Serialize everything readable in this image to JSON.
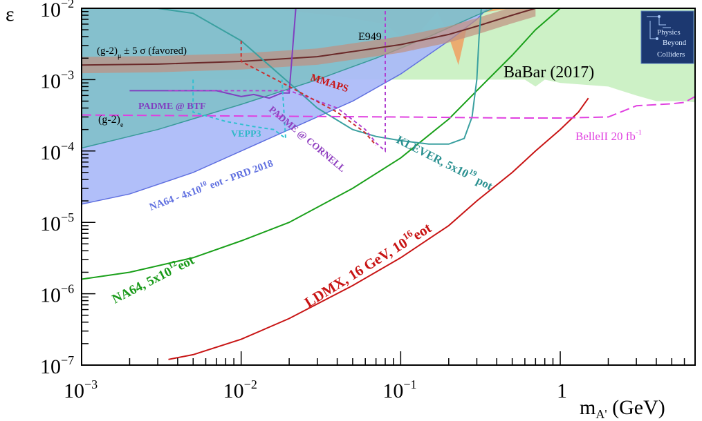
{
  "chart_data": {
    "type": "line",
    "xlabel": "m_{A'} (GeV)",
    "ylabel": "ε",
    "x_scale": "log",
    "y_scale": "log",
    "xlim": [
      0.001,
      7.0
    ],
    "ylim": [
      1e-07,
      0.01
    ],
    "grid": false,
    "x_ticks": [
      {
        "value": 0.001,
        "base": "10",
        "exp": "−3"
      },
      {
        "value": 0.01,
        "base": "10",
        "exp": "−2"
      },
      {
        "value": 0.1,
        "base": "10",
        "exp": "−1"
      },
      {
        "value": 1,
        "base": "1",
        "exp": ""
      }
    ],
    "y_ticks": [
      {
        "value": 1e-07,
        "base": "10",
        "exp": "−7"
      },
      {
        "value": 1e-06,
        "base": "10",
        "exp": "−6"
      },
      {
        "value": 1e-05,
        "base": "10",
        "exp": "−5"
      },
      {
        "value": 0.0001,
        "base": "10",
        "exp": "−4"
      },
      {
        "value": 0.001,
        "base": "10",
        "exp": "−3"
      },
      {
        "value": 0.01,
        "base": "10",
        "exp": "−2"
      }
    ],
    "excluded_regions": [
      {
        "label": "BaBar (2017)",
        "color": "#c8f0c0",
        "boundary": [
          [
            0.001,
            0.001
          ],
          [
            0.6,
            0.001
          ],
          [
            0.7,
            0.0008
          ],
          [
            0.8,
            0.001
          ],
          [
            1.0,
            0.0009
          ],
          [
            2.0,
            0.0008
          ],
          [
            3.0,
            0.0006
          ],
          [
            4.0,
            0.0005
          ],
          [
            6.0,
            0.0005
          ],
          [
            7.0,
            0.00048
          ]
        ]
      },
      {
        "label": "E949",
        "color": "#f0a060",
        "boundary": [
          [
            0.015,
            0.01
          ],
          [
            0.045,
            0.0075
          ],
          [
            0.08,
            0.006
          ],
          [
            0.1,
            0.004
          ],
          [
            0.12,
            0.0025
          ],
          [
            0.13,
            0.0045
          ],
          [
            0.17,
            0.009
          ],
          [
            0.2,
            0.004
          ],
          [
            0.23,
            0.0016
          ],
          [
            0.26,
            0.0055
          ],
          [
            0.3,
            0.0085
          ],
          [
            0.5,
            0.01
          ]
        ]
      },
      {
        "label": "NA64 - 4x10^10 eot - PRD 2018",
        "color": "#a8b8f8",
        "boundary": [
          [
            0.001,
            1.8e-05
          ],
          [
            0.002,
            2.5e-05
          ],
          [
            0.005,
            5e-05
          ],
          [
            0.01,
            0.0001
          ],
          [
            0.02,
            0.0002
          ],
          [
            0.05,
            0.0005
          ],
          [
            0.1,
            0.0012
          ],
          [
            0.2,
            0.0035
          ],
          [
            0.3,
            0.007
          ],
          [
            0.35,
            0.01
          ]
        ]
      },
      {
        "label": "(g-2)_e",
        "color": "#78c0c0",
        "boundary": [
          [
            0.001,
            0.00011
          ],
          [
            0.003,
            0.0002
          ],
          [
            0.01,
            0.00045
          ],
          [
            0.03,
            0.001
          ],
          [
            0.07,
            0.002
          ],
          [
            0.15,
            0.004
          ],
          [
            0.3,
            0.008
          ],
          [
            0.38,
            0.01
          ]
        ]
      }
    ],
    "series": [
      {
        "name": "(g-2)_μ ± 5 σ (favored)",
        "color": "#6b2a2a",
        "x": [
          0.001,
          0.003,
          0.01,
          0.03,
          0.1,
          0.2,
          0.3,
          0.5,
          0.7
        ],
        "y": [
          0.0016,
          0.00165,
          0.0018,
          0.0021,
          0.0031,
          0.0043,
          0.0056,
          0.008,
          0.01
        ]
      },
      {
        "name": "NA64, 5x10^12 eot",
        "color": "#1aa01a",
        "x": [
          0.001,
          0.002,
          0.005,
          0.01,
          0.02,
          0.05,
          0.1,
          0.2,
          0.3,
          0.5,
          0.7,
          1.0
        ],
        "y": [
          1.6e-06,
          2e-06,
          3.2e-06,
          5.5e-06,
          1e-05,
          3e-05,
          8e-05,
          0.00028,
          0.0007,
          0.0022,
          0.005,
          0.01
        ]
      },
      {
        "name": "LDMX, 16 GeV, 10^16 eot",
        "color": "#c81414",
        "x": [
          0.0035,
          0.005,
          0.01,
          0.02,
          0.05,
          0.1,
          0.2,
          0.3,
          0.5,
          0.7,
          1.0,
          1.3,
          1.5
        ],
        "y": [
          1.2e-07,
          1.4e-07,
          2.3e-07,
          4.5e-07,
          1.3e-06,
          3.2e-06,
          9e-06,
          2e-05,
          5e-05,
          0.0001,
          0.0002,
          0.00035,
          0.00055
        ]
      },
      {
        "name": "KLEVER, 5x10^19 pot",
        "color": "#3aa0a0",
        "x": [
          0.003,
          0.005,
          0.01,
          0.02,
          0.03,
          0.05,
          0.07,
          0.1,
          0.15,
          0.2,
          0.25,
          0.28,
          0.3,
          0.31,
          0.32
        ],
        "y": [
          0.01,
          0.0085,
          0.0035,
          0.0009,
          0.0004,
          0.0002,
          0.00016,
          0.00014,
          0.000125,
          0.000125,
          0.00015,
          0.0003,
          0.001,
          0.004,
          0.01
        ]
      },
      {
        "name": "BelleII 20 fb^-1",
        "color": "#e040e0",
        "dash": true,
        "x": [
          0.001,
          0.1,
          0.5,
          1.0,
          2.0,
          3.0,
          5.0,
          6.0,
          7.0
        ],
        "y": [
          0.00032,
          0.0003,
          0.00029,
          0.00029,
          0.0003,
          0.00043,
          0.00046,
          0.00048,
          0.00058
        ]
      },
      {
        "name": "PADME @ BTF",
        "color": "#8040c0",
        "x": [
          0.002,
          0.007,
          0.01,
          0.012,
          0.015,
          0.018,
          0.02,
          0.022
        ],
        "y": [
          0.0007,
          0.0007,
          0.00058,
          0.00062,
          0.00055,
          0.00065,
          0.00065,
          0.01
        ]
      },
      {
        "name": "PADME @ CORNELL",
        "color": "#b040d0",
        "dash": true,
        "x": [
          0.0035,
          0.02,
          0.04,
          0.06,
          0.07,
          0.08,
          0.08
        ],
        "y": [
          0.0007,
          0.0007,
          0.0004,
          0.0002,
          0.00013,
          0.0001,
          0.01
        ]
      },
      {
        "name": "VEPP3",
        "color": "#30c0d0",
        "dash": true,
        "x": [
          0.005,
          0.005,
          0.008,
          0.012,
          0.016,
          0.019,
          0.018
        ],
        "y": [
          0.001,
          0.00035,
          0.00026,
          0.00022,
          0.0002,
          0.00015,
          0.001
        ]
      },
      {
        "name": "MMAPS",
        "color": "#c83030",
        "dash": true,
        "x": [
          0.01,
          0.01,
          0.02,
          0.04,
          0.06,
          0.07
        ],
        "y": [
          0.0035,
          0.0018,
          0.0008,
          0.00035,
          0.00018,
          0.00012
        ]
      }
    ],
    "annotations": [
      {
        "text": "(g-2)",
        "sub": "μ",
        "rest": " ± 5 σ (favored)",
        "color": "#000000"
      },
      {
        "text": "E949",
        "color": "#000000"
      },
      {
        "text": "MMAPS",
        "color": "#c81414"
      },
      {
        "text": "BaBar (2017)",
        "color": "#000000"
      },
      {
        "text": "PADME @ BTF",
        "color": "#8040c0"
      },
      {
        "text": "(g-2)",
        "sub": "e",
        "color": "#000000"
      },
      {
        "text": "VEPP3",
        "color": "#30b8c8"
      },
      {
        "text": "PADME @ CORNELL",
        "color": "#9040c0"
      },
      {
        "text": "KLEVER, 5x10",
        "sup": "19",
        "rest": " pot",
        "color": "#2a9090"
      },
      {
        "text": "BelleII 20 fb",
        "sup": "-1",
        "color": "#e040e0"
      },
      {
        "text": "NA64 - 4x10",
        "sup": "10",
        "rest": " eot -  PRD 2018",
        "color": "#6070e0"
      },
      {
        "text": "NA64, 5x10",
        "sup": "12",
        "rest": "eot",
        "color": "#1a9a1a"
      },
      {
        "text": "LDMX, 16 GeV, 10",
        "sup": "16",
        "rest": "eot",
        "color": "#c81414"
      }
    ],
    "logo": {
      "lines": [
        "Physics",
        "Beyond",
        "Colliders"
      ]
    }
  }
}
